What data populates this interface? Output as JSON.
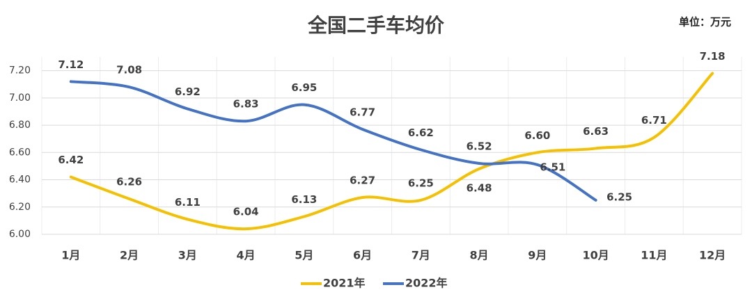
{
  "chart_data": {
    "type": "line",
    "title": "全国二手车均价",
    "subtitle": "单位：万元",
    "categories": [
      "1月",
      "2月",
      "3月",
      "4月",
      "5月",
      "6月",
      "7月",
      "8月",
      "9月",
      "10月",
      "11月",
      "12月"
    ],
    "series": [
      {
        "name": "2021年",
        "color": "#f5c000",
        "values": [
          6.42,
          6.26,
          6.11,
          6.04,
          6.13,
          6.27,
          6.25,
          6.48,
          6.6,
          6.63,
          6.71,
          7.18
        ],
        "value_labels": [
          "6.42",
          "6.26",
          "6.11",
          "6.04",
          "6.13",
          "6.27",
          "6.25",
          "6.48",
          "6.60",
          "6.63",
          "6.71",
          "7.18"
        ]
      },
      {
        "name": "2022年",
        "color": "#4472c4",
        "values": [
          7.12,
          7.08,
          6.92,
          6.83,
          6.95,
          6.77,
          6.62,
          6.52,
          6.51,
          6.25,
          null,
          null
        ],
        "value_labels": [
          "7.12",
          "7.08",
          "6.92",
          "6.83",
          "6.95",
          "6.77",
          "6.62",
          "6.52",
          "6.51",
          "6.25",
          null,
          null
        ]
      }
    ],
    "ylim": [
      6.0,
      7.3
    ],
    "yticks": [
      {
        "value": 6.0,
        "label": "6.00"
      },
      {
        "value": 6.2,
        "label": "6.20"
      },
      {
        "value": 6.4,
        "label": "6.40"
      },
      {
        "value": 6.6,
        "label": "6.60"
      },
      {
        "value": 6.8,
        "label": "6.80"
      },
      {
        "value": 7.0,
        "label": "7.00"
      },
      {
        "value": 7.2,
        "label": "7.20"
      }
    ],
    "grid": true,
    "legend": "bottom"
  }
}
